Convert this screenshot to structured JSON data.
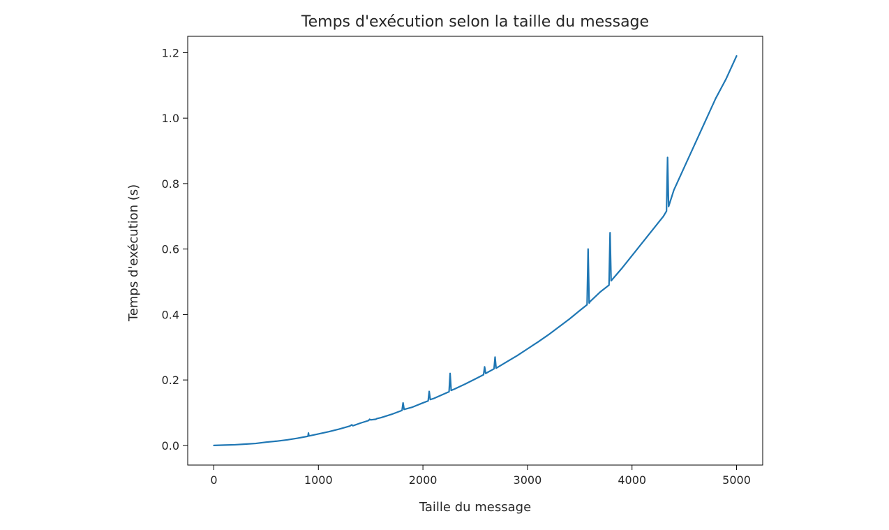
{
  "chart_data": {
    "type": "line",
    "title": "Temps d'exécution selon la taille du message",
    "xlabel": "Taille du message",
    "ylabel": "Temps d'exécution (s)",
    "xlim": [
      -250,
      5250
    ],
    "ylim": [
      -0.06,
      1.25
    ],
    "xticks": [
      0,
      1000,
      2000,
      3000,
      4000,
      5000
    ],
    "xtick_labels": [
      "0",
      "1000",
      "2000",
      "3000",
      "4000",
      "5000"
    ],
    "yticks": [
      0.0,
      0.2,
      0.4,
      0.6,
      0.8,
      1.0,
      1.2
    ],
    "ytick_labels": [
      "0.0",
      "0.2",
      "0.4",
      "0.6",
      "0.8",
      "1.0",
      "1.2"
    ],
    "grid": false,
    "legend": "none",
    "series": [
      {
        "color": "#1f77b4",
        "x": [
          0,
          100,
          200,
          300,
          400,
          500,
          600,
          700,
          800,
          900,
          905,
          910,
          1000,
          1100,
          1200,
          1300,
          1320,
          1330,
          1400,
          1480,
          1490,
          1500,
          1550,
          1560,
          1600,
          1700,
          1800,
          1810,
          1820,
          1900,
          2000,
          2050,
          2060,
          2070,
          2100,
          2200,
          2250,
          2260,
          2270,
          2300,
          2400,
          2500,
          2580,
          2590,
          2600,
          2680,
          2690,
          2700,
          2800,
          2900,
          3000,
          3100,
          3200,
          3300,
          3400,
          3500,
          3570,
          3580,
          3590,
          3600,
          3700,
          3780,
          3790,
          3800,
          3900,
          4000,
          4100,
          4200,
          4300,
          4330,
          4340,
          4350,
          4400,
          4500,
          4600,
          4700,
          4800,
          4900,
          5000
        ],
        "y": [
          0.0,
          0.001,
          0.002,
          0.004,
          0.006,
          0.01,
          0.013,
          0.017,
          0.022,
          0.028,
          0.038,
          0.029,
          0.035,
          0.042,
          0.05,
          0.059,
          0.063,
          0.06,
          0.068,
          0.076,
          0.08,
          0.078,
          0.08,
          0.082,
          0.085,
          0.095,
          0.107,
          0.13,
          0.11,
          0.117,
          0.13,
          0.136,
          0.165,
          0.14,
          0.143,
          0.157,
          0.164,
          0.22,
          0.168,
          0.172,
          0.187,
          0.203,
          0.216,
          0.24,
          0.22,
          0.234,
          0.27,
          0.236,
          0.255,
          0.274,
          0.295,
          0.316,
          0.338,
          0.362,
          0.386,
          0.412,
          0.43,
          0.6,
          0.435,
          0.44,
          0.47,
          0.49,
          0.65,
          0.503,
          0.54,
          0.58,
          0.62,
          0.66,
          0.7,
          0.716,
          0.88,
          0.73,
          0.78,
          0.85,
          0.92,
          0.99,
          1.06,
          1.12,
          1.19
        ]
      }
    ]
  }
}
